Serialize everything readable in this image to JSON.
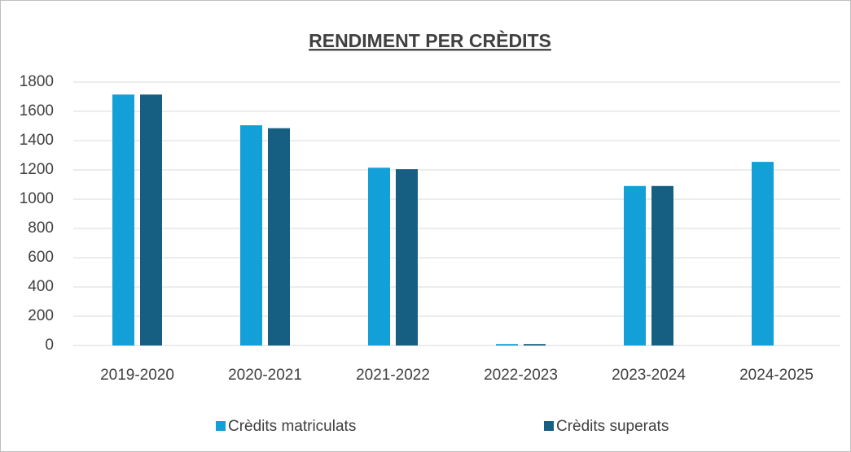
{
  "chart_data": {
    "type": "bar",
    "title": "RENDIMENT PER CRÈDITS",
    "categories": [
      "2019-2020",
      "2020-2021",
      "2021-2022",
      "2022-2023",
      "2023-2024",
      "2024-2025"
    ],
    "series": [
      {
        "name": "Crèdits matriculats",
        "color": "#139fd8",
        "values": [
          1715,
          1505,
          1215,
          10,
          1090,
          1255
        ]
      },
      {
        "name": "Crèdits superats",
        "color": "#175f82",
        "values": [
          1715,
          1485,
          1205,
          10,
          1090,
          null
        ]
      }
    ],
    "ylim": [
      0,
      1800
    ],
    "yticks": [
      0,
      200,
      400,
      600,
      800,
      1000,
      1200,
      1400,
      1600,
      1800
    ],
    "grid": true,
    "legend": "bottom"
  }
}
